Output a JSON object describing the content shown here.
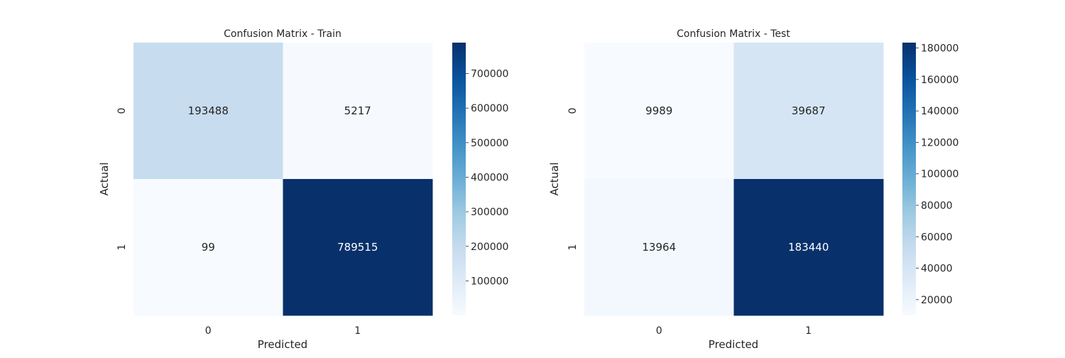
{
  "chart_data": [
    {
      "type": "heatmap",
      "title": "Confusion Matrix - Train",
      "xlabel": "Predicted",
      "ylabel": "Actual",
      "x_categories": [
        "0",
        "1"
      ],
      "y_categories": [
        "0",
        "1"
      ],
      "values": [
        [
          193488,
          5217
        ],
        [
          99,
          789515
        ]
      ],
      "colormap": "Blues",
      "colorbar": {
        "range": [
          99,
          789515
        ],
        "ticks": [
          100000,
          200000,
          300000,
          400000,
          500000,
          600000,
          700000
        ],
        "tick_labels": [
          "100000",
          "200000",
          "300000",
          "400000",
          "500000",
          "600000",
          "700000"
        ]
      },
      "grid": false
    },
    {
      "type": "heatmap",
      "title": "Confusion Matrix - Test",
      "xlabel": "Predicted",
      "ylabel": "Actual",
      "x_categories": [
        "0",
        "1"
      ],
      "y_categories": [
        "0",
        "1"
      ],
      "values": [
        [
          9989,
          39687
        ],
        [
          13964,
          183440
        ]
      ],
      "colormap": "Blues",
      "colorbar": {
        "range": [
          9989,
          183440
        ],
        "ticks": [
          20000,
          40000,
          60000,
          80000,
          100000,
          120000,
          140000,
          160000,
          180000
        ],
        "tick_labels": [
          "20000",
          "40000",
          "60000",
          "80000",
          "100000",
          "120000",
          "140000",
          "160000",
          "180000"
        ]
      },
      "grid": false
    }
  ]
}
